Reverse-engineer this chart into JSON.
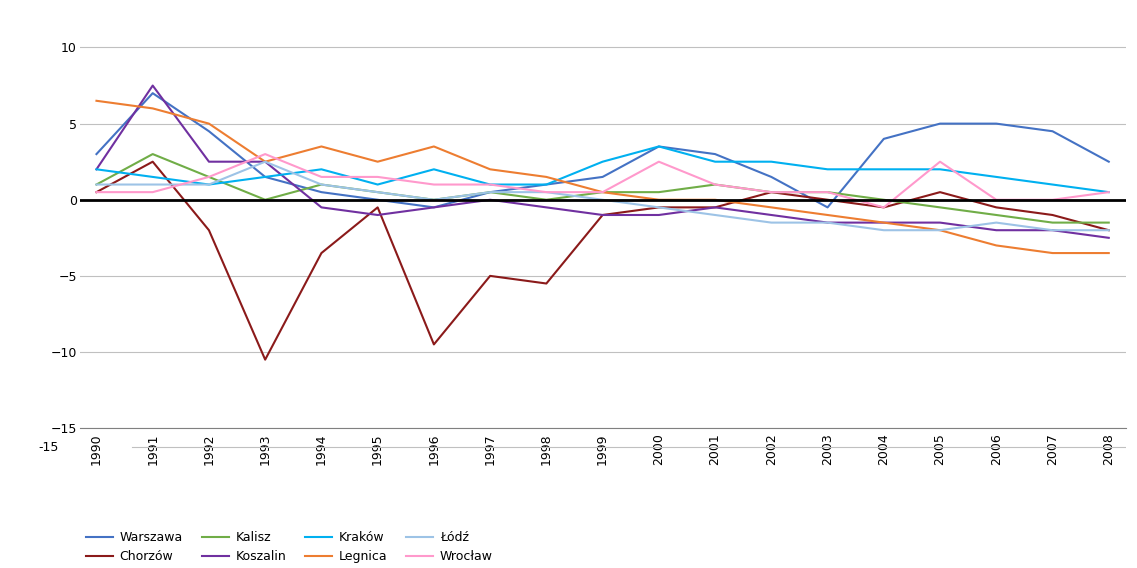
{
  "years": [
    1990,
    1991,
    1992,
    1993,
    1994,
    1995,
    1996,
    1997,
    1998,
    1999,
    2000,
    2001,
    2002,
    2003,
    2004,
    2005,
    2006,
    2007,
    2008
  ],
  "series": {
    "Warszawa": {
      "color": "#4472C4",
      "values": [
        3.0,
        7.0,
        4.5,
        1.5,
        0.5,
        0.0,
        -0.5,
        0.5,
        1.0,
        1.5,
        3.5,
        3.0,
        1.5,
        -0.5,
        4.0,
        5.0,
        5.0,
        4.5,
        2.5
      ]
    },
    "Chorzów": {
      "color": "#8B1A1A",
      "values": [
        0.5,
        2.5,
        -2.0,
        -10.5,
        -3.5,
        -0.5,
        -9.5,
        -5.0,
        -5.5,
        -1.0,
        -0.5,
        -0.5,
        0.5,
        0.0,
        -0.5,
        0.5,
        -0.5,
        -1.0,
        -2.0
      ]
    },
    "Kalisz": {
      "color": "#70AD47",
      "values": [
        1.0,
        3.0,
        1.5,
        0.0,
        1.0,
        0.5,
        0.0,
        0.5,
        0.0,
        0.5,
        0.5,
        1.0,
        0.5,
        0.5,
        0.0,
        -0.5,
        -1.0,
        -1.5,
        -1.5
      ]
    },
    "Koszalin": {
      "color": "#7030A0",
      "values": [
        2.0,
        7.5,
        2.5,
        2.5,
        -0.5,
        -1.0,
        -0.5,
        0.0,
        -0.5,
        -1.0,
        -1.0,
        -0.5,
        -1.0,
        -1.5,
        -1.5,
        -1.5,
        -2.0,
        -2.0,
        -2.5
      ]
    },
    "Kraków": {
      "color": "#00B0F0",
      "values": [
        2.0,
        1.5,
        1.0,
        1.5,
        2.0,
        1.0,
        2.0,
        1.0,
        1.0,
        2.5,
        3.5,
        2.5,
        2.5,
        2.0,
        2.0,
        2.0,
        1.5,
        1.0,
        0.5
      ]
    },
    "Legnica": {
      "color": "#ED7D31",
      "values": [
        6.5,
        6.0,
        5.0,
        2.5,
        3.5,
        2.5,
        3.5,
        2.0,
        1.5,
        0.5,
        0.0,
        0.0,
        -0.5,
        -1.0,
        -1.5,
        -2.0,
        -3.0,
        -3.5,
        -3.5
      ]
    },
    "Łódź": {
      "color": "#9DC3E6",
      "values": [
        1.0,
        1.0,
        1.0,
        2.5,
        1.0,
        0.5,
        0.0,
        0.5,
        0.5,
        0.0,
        -0.5,
        -1.0,
        -1.5,
        -1.5,
        -2.0,
        -2.0,
        -1.5,
        -2.0,
        -2.0
      ]
    },
    "Wrocław": {
      "color": "#FF99CC",
      "values": [
        0.5,
        0.5,
        1.5,
        3.0,
        1.5,
        1.5,
        1.0,
        1.0,
        0.5,
        0.5,
        2.5,
        1.0,
        0.5,
        0.5,
        -0.5,
        2.5,
        0.0,
        0.0,
        0.5
      ]
    }
  },
  "ylim": [
    -15,
    12
  ],
  "yticks": [
    -15,
    -10,
    -5,
    0,
    5,
    10
  ],
  "background_color": "#FFFFFF",
  "grid_color": "#C0C0C0",
  "zero_line_color": "#000000",
  "legend_order": [
    "Warszawa",
    "Chorzów",
    "Kalisz",
    "Koszalin",
    "Kraków",
    "Legnica",
    "Łódź",
    "Wrocław"
  ]
}
